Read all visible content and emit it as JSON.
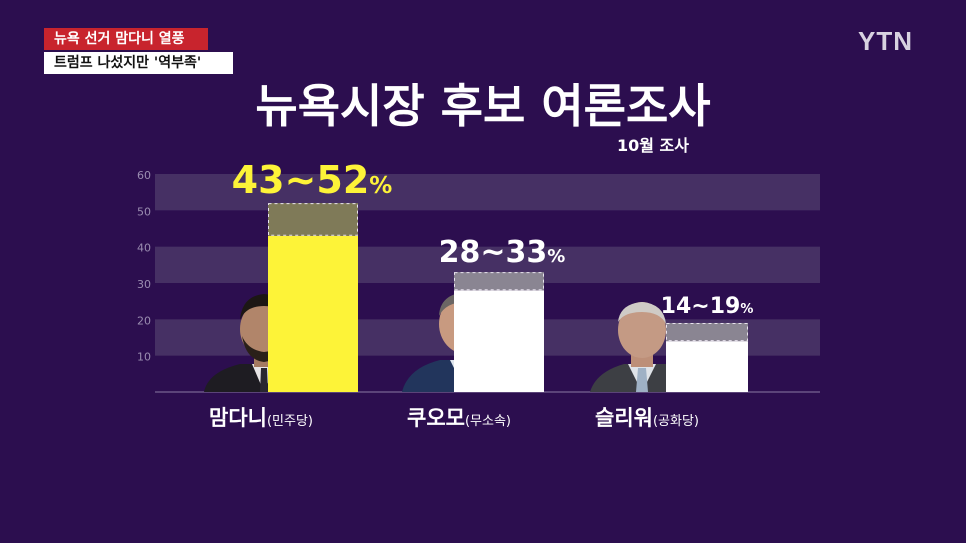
{
  "broadcast": {
    "headline_top": "뉴욕 선거 맘다니 열풍",
    "headline_bottom": "트럼프 나섰지만 '역부족'",
    "logo": "YTN"
  },
  "colors": {
    "background": "#2c0e4f",
    "band": "#463064",
    "yellow": "#fdf338",
    "white": "#ffffff",
    "range_overlay": "#7f7a58",
    "range_overlay_white": "#8a8592",
    "headline_red": "#c8242d"
  },
  "chart_data": {
    "type": "bar",
    "title": "뉴욕시장 후보 여론조사",
    "subtitle": "10월 조사",
    "ylim": [
      0,
      60
    ],
    "yticks": [
      "10",
      "20",
      "30",
      "40",
      "50",
      "60"
    ],
    "grid": true,
    "categories": [
      "맘다니",
      "쿠오모",
      "슬리워"
    ],
    "parties": [
      "(민주당)",
      "(무소속)",
      "(공화당)"
    ],
    "ranges": [
      {
        "low": 43,
        "high": 52,
        "label": "43~52",
        "unit": "%"
      },
      {
        "low": 28,
        "high": 33,
        "label": "28~33",
        "unit": "%"
      },
      {
        "low": 14,
        "high": 19,
        "label": "14~19",
        "unit": "%"
      }
    ]
  }
}
